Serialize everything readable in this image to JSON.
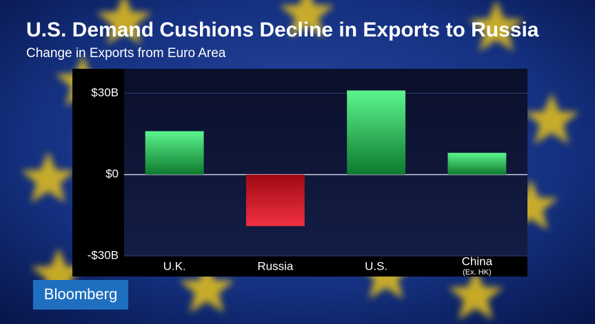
{
  "chart_data": {
    "type": "bar",
    "title": "U.S. Demand Cushions Decline in Exports to Russia",
    "subtitle": "Change in Exports from Euro Area",
    "categories": [
      "U.K.",
      "Russia",
      "U.S.",
      "China"
    ],
    "category_notes": [
      null,
      null,
      null,
      "(Ex. HK)"
    ],
    "values": [
      16,
      -19,
      31,
      8
    ],
    "positive_color": "#2fd36a",
    "negative_color": "#d8202c",
    "ylim": [
      -30,
      39
    ],
    "yticks": [
      {
        "value": 30,
        "label": "$30B"
      },
      {
        "value": 0,
        "label": "$0"
      },
      {
        "value": -30,
        "label": "-$30B"
      }
    ],
    "grid": true
  },
  "brand": {
    "name": "Bloomberg"
  }
}
